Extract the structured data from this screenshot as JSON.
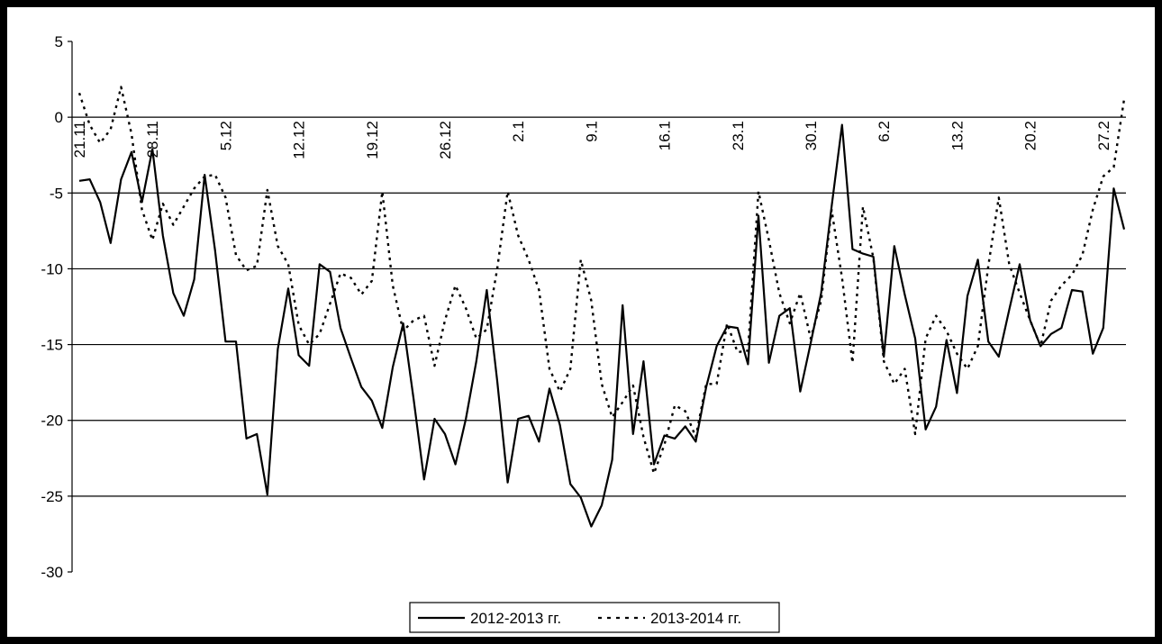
{
  "chart_data": {
    "type": "line",
    "title": "",
    "xlabel": "",
    "ylabel": "",
    "ylim": [
      -30,
      5
    ],
    "yticks": [
      5,
      0,
      -5,
      -10,
      -15,
      -20,
      -25,
      -30
    ],
    "gridlines_y": [
      0,
      -5,
      -10,
      -15,
      -20,
      -25
    ],
    "grid": true,
    "legend_position": "bottom-center",
    "xtick_labels": [
      "21.11",
      "28.11",
      "5.12",
      "12.12",
      "19.12",
      "26.12",
      "2.1",
      "9.1",
      "16.1",
      "23.1",
      "30.1",
      "6.2",
      "13.2",
      "20.2",
      "27.2"
    ],
    "colors": {
      "line": "#000000",
      "grid": "#000000",
      "frame": "#000000"
    },
    "series": [
      {
        "name": "2012-2013 гг.",
        "style": "solid",
        "values": [
          -4.2,
          -4.1,
          -5.6,
          -8.3,
          -4.1,
          -2.3,
          -5.6,
          -2.1,
          -7.8,
          -11.6,
          -13.1,
          -10.7,
          -3.8,
          -8.8,
          -14.8,
          -14.8,
          -21.2,
          -20.9,
          -24.9,
          -15.3,
          -11.3,
          -15.7,
          -16.4,
          -9.7,
          -10.2,
          -13.9,
          -15.9,
          -17.8,
          -18.7,
          -20.5,
          -16.5,
          -13.6,
          -18.6,
          -23.9,
          -19.9,
          -20.9,
          -22.9,
          -19.9,
          -16.1,
          -11.4,
          -17.4,
          -24.1,
          -19.9,
          -19.7,
          -21.4,
          -17.9,
          -20.3,
          -24.2,
          -25.1,
          -27.0,
          -25.6,
          -22.6,
          -12.4,
          -20.9,
          -16.1,
          -22.9,
          -21.0,
          -21.2,
          -20.4,
          -21.4,
          -17.8,
          -15.1,
          -13.8,
          -13.9,
          -16.3,
          -6.5,
          -16.2,
          -13.1,
          -12.6,
          -18.1,
          -14.9,
          -11.6,
          -5.9,
          -0.5,
          -8.7,
          -9.0,
          -9.2,
          -15.8,
          -8.5,
          -11.7,
          -14.6,
          -20.6,
          -19.1,
          -14.7,
          -18.2,
          -11.8,
          -9.4,
          -14.8,
          -15.8,
          -12.7,
          -9.7,
          -13.4,
          -15.1,
          -14.3,
          -13.9,
          -11.4,
          -11.5,
          -15.6,
          -13.9,
          -4.7,
          -7.4
        ]
      },
      {
        "name": "2013-2014 гг.",
        "style": "dotted",
        "values": [
          1.6,
          -0.5,
          -1.7,
          -0.8,
          2.0,
          -1.1,
          -6.1,
          -8.1,
          -5.7,
          -7.1,
          -5.9,
          -4.7,
          -3.9,
          -3.8,
          -5.3,
          -9.1,
          -10.1,
          -9.8,
          -4.8,
          -8.5,
          -9.7,
          -13.7,
          -15.0,
          -14.3,
          -12.3,
          -10.3,
          -10.6,
          -11.7,
          -10.8,
          -4.9,
          -11.1,
          -14.1,
          -13.4,
          -13.1,
          -16.4,
          -13.4,
          -11.1,
          -12.6,
          -14.6,
          -14.0,
          -10.0,
          -4.9,
          -7.8,
          -9.4,
          -11.4,
          -16.6,
          -18.1,
          -16.6,
          -9.4,
          -12.1,
          -17.6,
          -19.8,
          -18.8,
          -17.7,
          -21.1,
          -23.5,
          -21.6,
          -19.0,
          -19.4,
          -21.1,
          -17.6,
          -17.6,
          -13.6,
          -15.5,
          -15.4,
          -4.9,
          -8.1,
          -11.6,
          -13.6,
          -11.6,
          -14.6,
          -12.1,
          -6.1,
          -10.6,
          -16.2,
          -5.9,
          -9.3,
          -16.1,
          -17.6,
          -16.6,
          -20.9,
          -14.6,
          -13.1,
          -14.1,
          -15.6,
          -16.6,
          -15.1,
          -9.8,
          -5.3,
          -9.7,
          -11.6,
          -13.4,
          -15.1,
          -12.1,
          -11.1,
          -10.4,
          -9.1,
          -6.1,
          -3.9,
          -3.3,
          1.2
        ]
      }
    ]
  },
  "legend": {
    "items": [
      {
        "label": "2012-2013 гг.",
        "style": "solid"
      },
      {
        "label": "2013-2014 гг.",
        "style": "dotted"
      }
    ]
  }
}
